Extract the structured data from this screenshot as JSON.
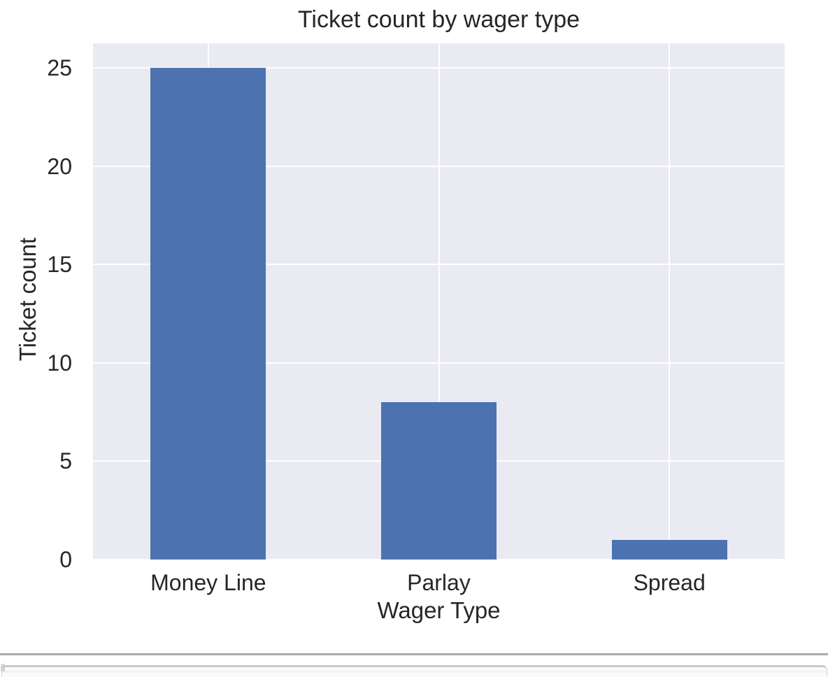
{
  "chart_data": {
    "type": "bar",
    "title": "Ticket count by wager type",
    "xlabel": "Wager Type",
    "ylabel": "Ticket count",
    "categories": [
      "Money Line",
      "Parlay",
      "Spread"
    ],
    "values": [
      25,
      8,
      1
    ],
    "yticks": [
      0,
      5,
      10,
      15,
      20,
      25
    ],
    "ylim": [
      0,
      26.25
    ],
    "grid": true,
    "legend_position": "none",
    "bar_color": "#4c72b0",
    "plot_bg_color": "#eaeaf2",
    "grid_color": "#ffffff",
    "text_color": "#262626"
  },
  "page": {
    "divider_color": "#a9a9a9"
  }
}
